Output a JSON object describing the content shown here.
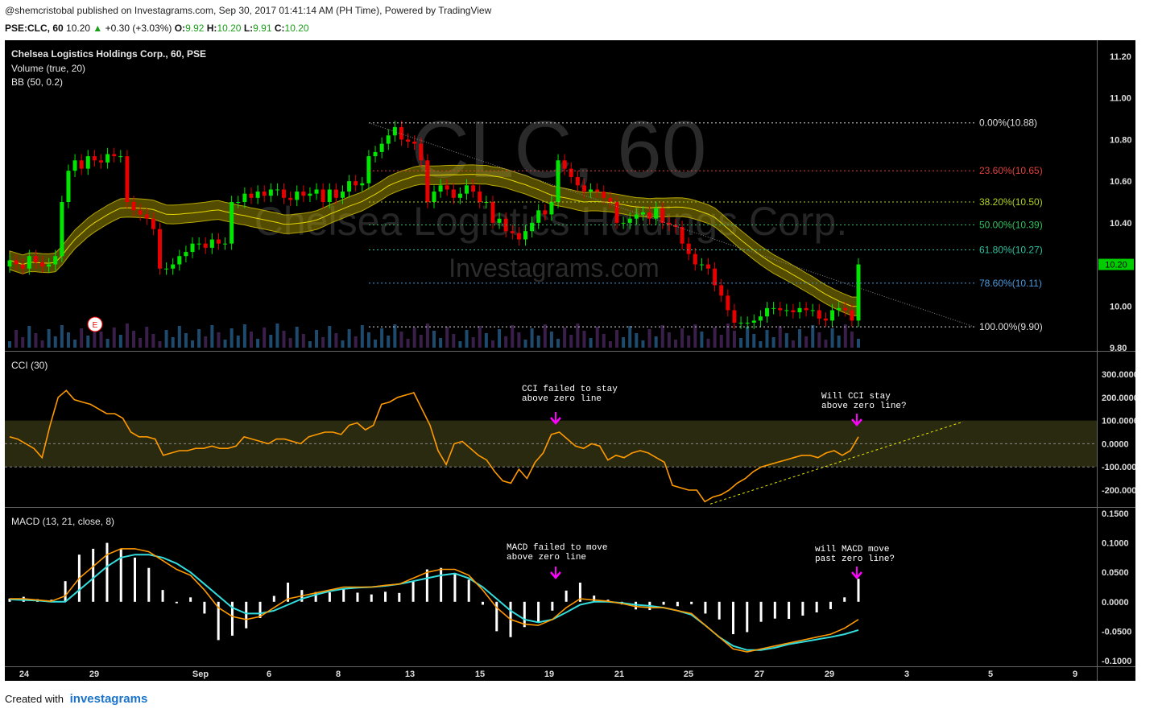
{
  "header": {
    "publish_line": "@shemcristobal published on Investagrams.com, Sep 30, 2017 01:41:14 AM (PH Time), Powered by TradingView",
    "symbol": "PSE:CLC, 60",
    "last": "10.20",
    "change": "+0.30 (+3.03%)",
    "open_label": "O:",
    "open": "9.92",
    "high_label": "H:",
    "high": "10.20",
    "low_label": "L:",
    "low": "9.91",
    "close_label": "C:",
    "close": "10.20"
  },
  "watermark": {
    "line1": "CLC, 60",
    "line2": "Chelsea Logistics Holdings Corp.",
    "line3": "Investagrams.com"
  },
  "legend": {
    "title": "Chelsea Logistics Holdings Corp., 60, PSE",
    "volume": "Volume (true, 20)",
    "bb": "BB (50, 0.2)",
    "cci": "CCI (30)",
    "macd": "MACD (13, 21, close, 8)"
  },
  "earnings_marker": "E",
  "price_badge": "10.20",
  "annotations": {
    "cci_left": [
      "CCI failed to stay",
      "above zero line"
    ],
    "cci_right": [
      "Will CCI stay",
      "above zero line?"
    ],
    "macd_left": [
      "MACD failed to move",
      "above zero line"
    ],
    "macd_right": [
      "will MACD move",
      "past zero line?"
    ]
  },
  "footer": {
    "created_with": "Created with",
    "brand": "investagrams"
  },
  "colors": {
    "up": "#00e600",
    "down": "#e60000",
    "bb_band": "#b5a600",
    "cci": "#ff9900",
    "macd": "#ff9900",
    "signal": "#33dddd",
    "arrow": "#ff00ff",
    "fib_line": "#cccccc"
  },
  "chart_data": [
    {
      "type": "candlestick",
      "title": "Chelsea Logistics Holdings Corp., 60, PSE",
      "x_tick_labels": [
        "24",
        "29",
        "Sep",
        "6",
        "8",
        "13",
        "15",
        "19",
        "21",
        "25",
        "27",
        "29",
        "3",
        "5",
        "9"
      ],
      "y_tick_labels": [
        "11.20",
        "11.00",
        "10.80",
        "10.60",
        "10.40",
        "10.20",
        "10.00",
        "9.80"
      ],
      "ylim": [
        9.8,
        11.25
      ],
      "closes": [
        10.22,
        10.2,
        10.18,
        10.24,
        10.21,
        10.19,
        10.2,
        10.24,
        10.5,
        10.65,
        10.7,
        10.66,
        10.72,
        10.7,
        10.69,
        10.73,
        10.72,
        10.72,
        10.5,
        10.46,
        10.44,
        10.42,
        10.37,
        10.18,
        10.18,
        10.2,
        10.24,
        10.26,
        10.3,
        10.3,
        10.28,
        10.32,
        10.3,
        10.3,
        10.5,
        10.5,
        10.54,
        10.52,
        10.55,
        10.53,
        10.56,
        10.56,
        10.52,
        10.51,
        10.55,
        10.53,
        10.54,
        10.56,
        10.5,
        10.56,
        10.52,
        10.55,
        10.6,
        10.58,
        10.59,
        10.72,
        10.74,
        10.78,
        10.82,
        10.86,
        10.8,
        10.79,
        10.78,
        10.7,
        10.5,
        10.55,
        10.58,
        10.56,
        10.52,
        10.54,
        10.58,
        10.55,
        10.5,
        10.5,
        10.4,
        10.42,
        10.36,
        10.35,
        10.32,
        10.36,
        10.4,
        10.46,
        10.44,
        10.5,
        10.7,
        10.66,
        10.62,
        10.58,
        10.55,
        10.56,
        10.55,
        10.52,
        10.5,
        10.4,
        10.4,
        10.42,
        10.44,
        10.45,
        10.42,
        10.47,
        10.4,
        10.39,
        10.38,
        10.3,
        10.25,
        10.2,
        10.2,
        10.18,
        10.1,
        10.05,
        9.98,
        9.92,
        9.92,
        9.92,
        9.93,
        9.95,
        9.99,
        9.99,
        9.98,
        9.98,
        9.97,
        9.99,
        9.98,
        9.98,
        9.94,
        9.93,
        9.98,
        9.99,
        9.98,
        9.93,
        10.2
      ],
      "ohlc_candles": [
        {
          "o": 10.18,
          "h": 10.26,
          "c": 10.28
        }
      ]
    },
    {
      "type": "line",
      "title": "CCI (30)",
      "y_tick_labels": [
        "300.0000",
        "200.0000",
        "100.0000",
        "0.0000",
        "-100.0000",
        "-200.0000"
      ],
      "ylim": [
        -290,
        330
      ],
      "series": [
        {
          "name": "CCI",
          "values": [
            30,
            20,
            0,
            -20,
            -60,
            80,
            200,
            230,
            190,
            180,
            170,
            150,
            130,
            130,
            110,
            50,
            30,
            30,
            20,
            -50,
            -40,
            -30,
            -30,
            -20,
            -20,
            -10,
            -20,
            -20,
            -10,
            30,
            20,
            10,
            0,
            20,
            20,
            10,
            0,
            30,
            40,
            50,
            50,
            40,
            80,
            90,
            60,
            80,
            170,
            180,
            200,
            210,
            220,
            150,
            80,
            -30,
            -90,
            0,
            10,
            -20,
            -50,
            -70,
            -120,
            -160,
            -170,
            -110,
            -150,
            -80,
            -40,
            40,
            50,
            20,
            -10,
            -20,
            0,
            -10,
            -70,
            -50,
            -60,
            -40,
            -30,
            -40,
            -60,
            -80,
            -180,
            -190,
            -200,
            -200,
            -250,
            -230,
            -220,
            -200,
            -170,
            -150,
            -120,
            -100,
            -90,
            -80,
            -70,
            -60,
            -50,
            -50,
            -60,
            -40,
            -30,
            -50,
            -30,
            30
          ]
        }
      ]
    },
    {
      "type": "line",
      "title": "MACD (13, 21, close, 8)",
      "y_tick_labels": [
        "0.1500",
        "0.1000",
        "0.0500",
        "0.0000",
        "-0.0500",
        "-0.1000"
      ],
      "ylim": [
        -0.105,
        0.155
      ],
      "series": [
        {
          "name": "MACD",
          "values": [
            0.005,
            0.005,
            0.003,
            0.001,
            0.01,
            0.04,
            0.06,
            0.08,
            0.09,
            0.09,
            0.085,
            0.07,
            0.055,
            0.045,
            0.02,
            -0.01,
            -0.025,
            -0.03,
            -0.025,
            -0.01,
            0.005,
            0.01,
            0.015,
            0.02,
            0.025,
            0.025,
            0.025,
            0.028,
            0.03,
            0.04,
            0.05,
            0.055,
            0.055,
            0.045,
            0.02,
            -0.01,
            -0.03,
            -0.038,
            -0.04,
            -0.03,
            -0.01,
            0.005,
            0.003,
            0.001,
            -0.003,
            -0.008,
            -0.01,
            -0.01,
            -0.015,
            -0.02,
            -0.04,
            -0.06,
            -0.08,
            -0.085,
            -0.08,
            -0.075,
            -0.07,
            -0.065,
            -0.06,
            -0.055,
            -0.045,
            -0.03
          ]
        },
        {
          "name": "Signal",
          "values": [
            0.004,
            0.003,
            0.002,
            0.0,
            0.0,
            0.02,
            0.04,
            0.06,
            0.075,
            0.08,
            0.08,
            0.075,
            0.065,
            0.05,
            0.03,
            0.01,
            -0.01,
            -0.02,
            -0.02,
            -0.015,
            -0.005,
            0.005,
            0.012,
            0.018,
            0.022,
            0.024,
            0.025,
            0.027,
            0.03,
            0.035,
            0.04,
            0.045,
            0.048,
            0.04,
            0.025,
            0.005,
            -0.015,
            -0.03,
            -0.035,
            -0.03,
            -0.018,
            -0.005,
            0.0,
            0.0,
            -0.002,
            -0.005,
            -0.007,
            -0.01,
            -0.015,
            -0.022,
            -0.04,
            -0.06,
            -0.075,
            -0.082,
            -0.082,
            -0.078,
            -0.072,
            -0.068,
            -0.064,
            -0.06,
            -0.055,
            -0.048
          ]
        }
      ]
    }
  ],
  "fib_levels": [
    {
      "label": "0.00%(10.88)",
      "price": 10.88,
      "color": "#dddddd"
    },
    {
      "label": "23.60%(10.65)",
      "price": 10.65,
      "color": "#e04040"
    },
    {
      "label": "38.20%(10.50)",
      "price": 10.5,
      "color": "#b0d020"
    },
    {
      "label": "50.00%(10.39)",
      "price": 10.39,
      "color": "#30c060"
    },
    {
      "label": "61.80%(10.27)",
      "price": 10.27,
      "color": "#30c0a0"
    },
    {
      "label": "78.60%(10.11)",
      "price": 10.11,
      "color": "#4a9ae0"
    },
    {
      "label": "100.00%(9.90)",
      "price": 9.9,
      "color": "#dddddd"
    }
  ]
}
